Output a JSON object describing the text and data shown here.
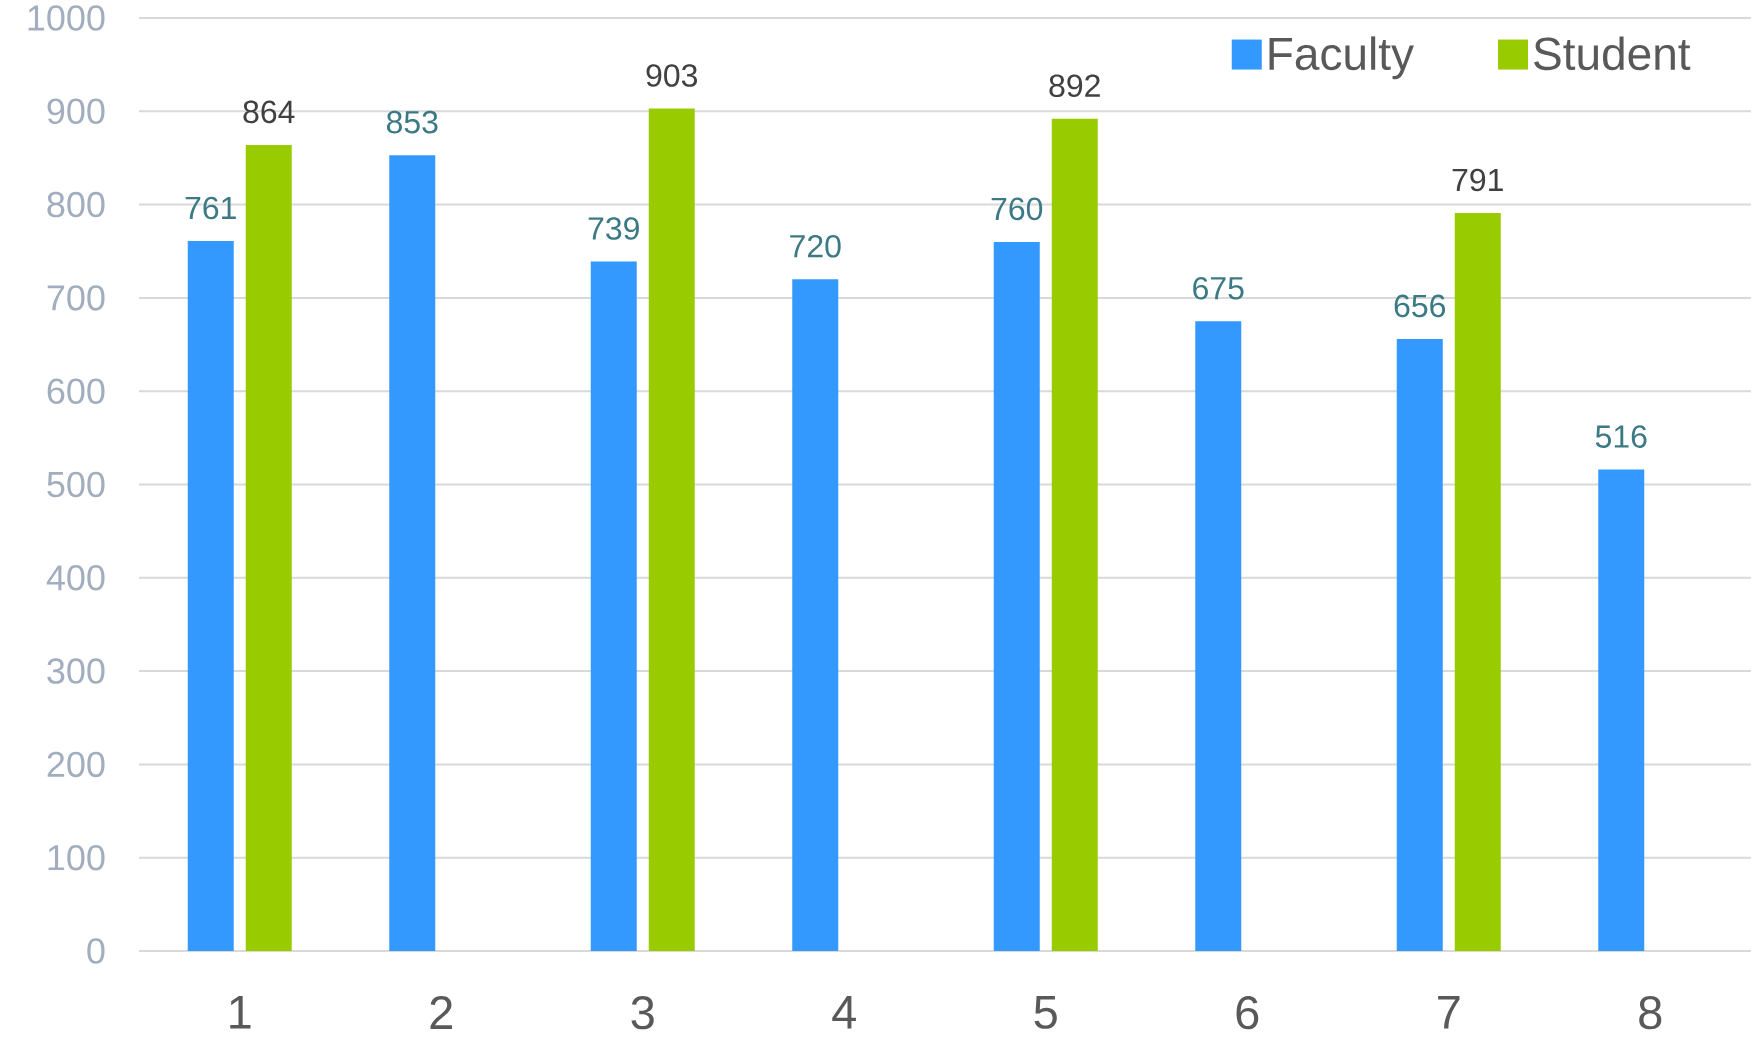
{
  "chart_data": {
    "type": "bar",
    "categories": [
      "1",
      "2",
      "3",
      "4",
      "5",
      "6",
      "7",
      "8"
    ],
    "series": [
      {
        "name": "Faculty",
        "color": "#3399ff",
        "values": [
          761,
          853,
          739,
          720,
          760,
          675,
          656,
          516
        ]
      },
      {
        "name": "Student",
        "color": "#99cc00",
        "values": [
          864,
          null,
          903,
          null,
          892,
          null,
          791,
          null
        ]
      }
    ],
    "ylim": [
      0,
      1000
    ],
    "yticks": [
      0,
      100,
      200,
      300,
      400,
      500,
      600,
      700,
      800,
      900,
      1000
    ],
    "grid": "y",
    "legend": "top right",
    "data_labels": true
  }
}
